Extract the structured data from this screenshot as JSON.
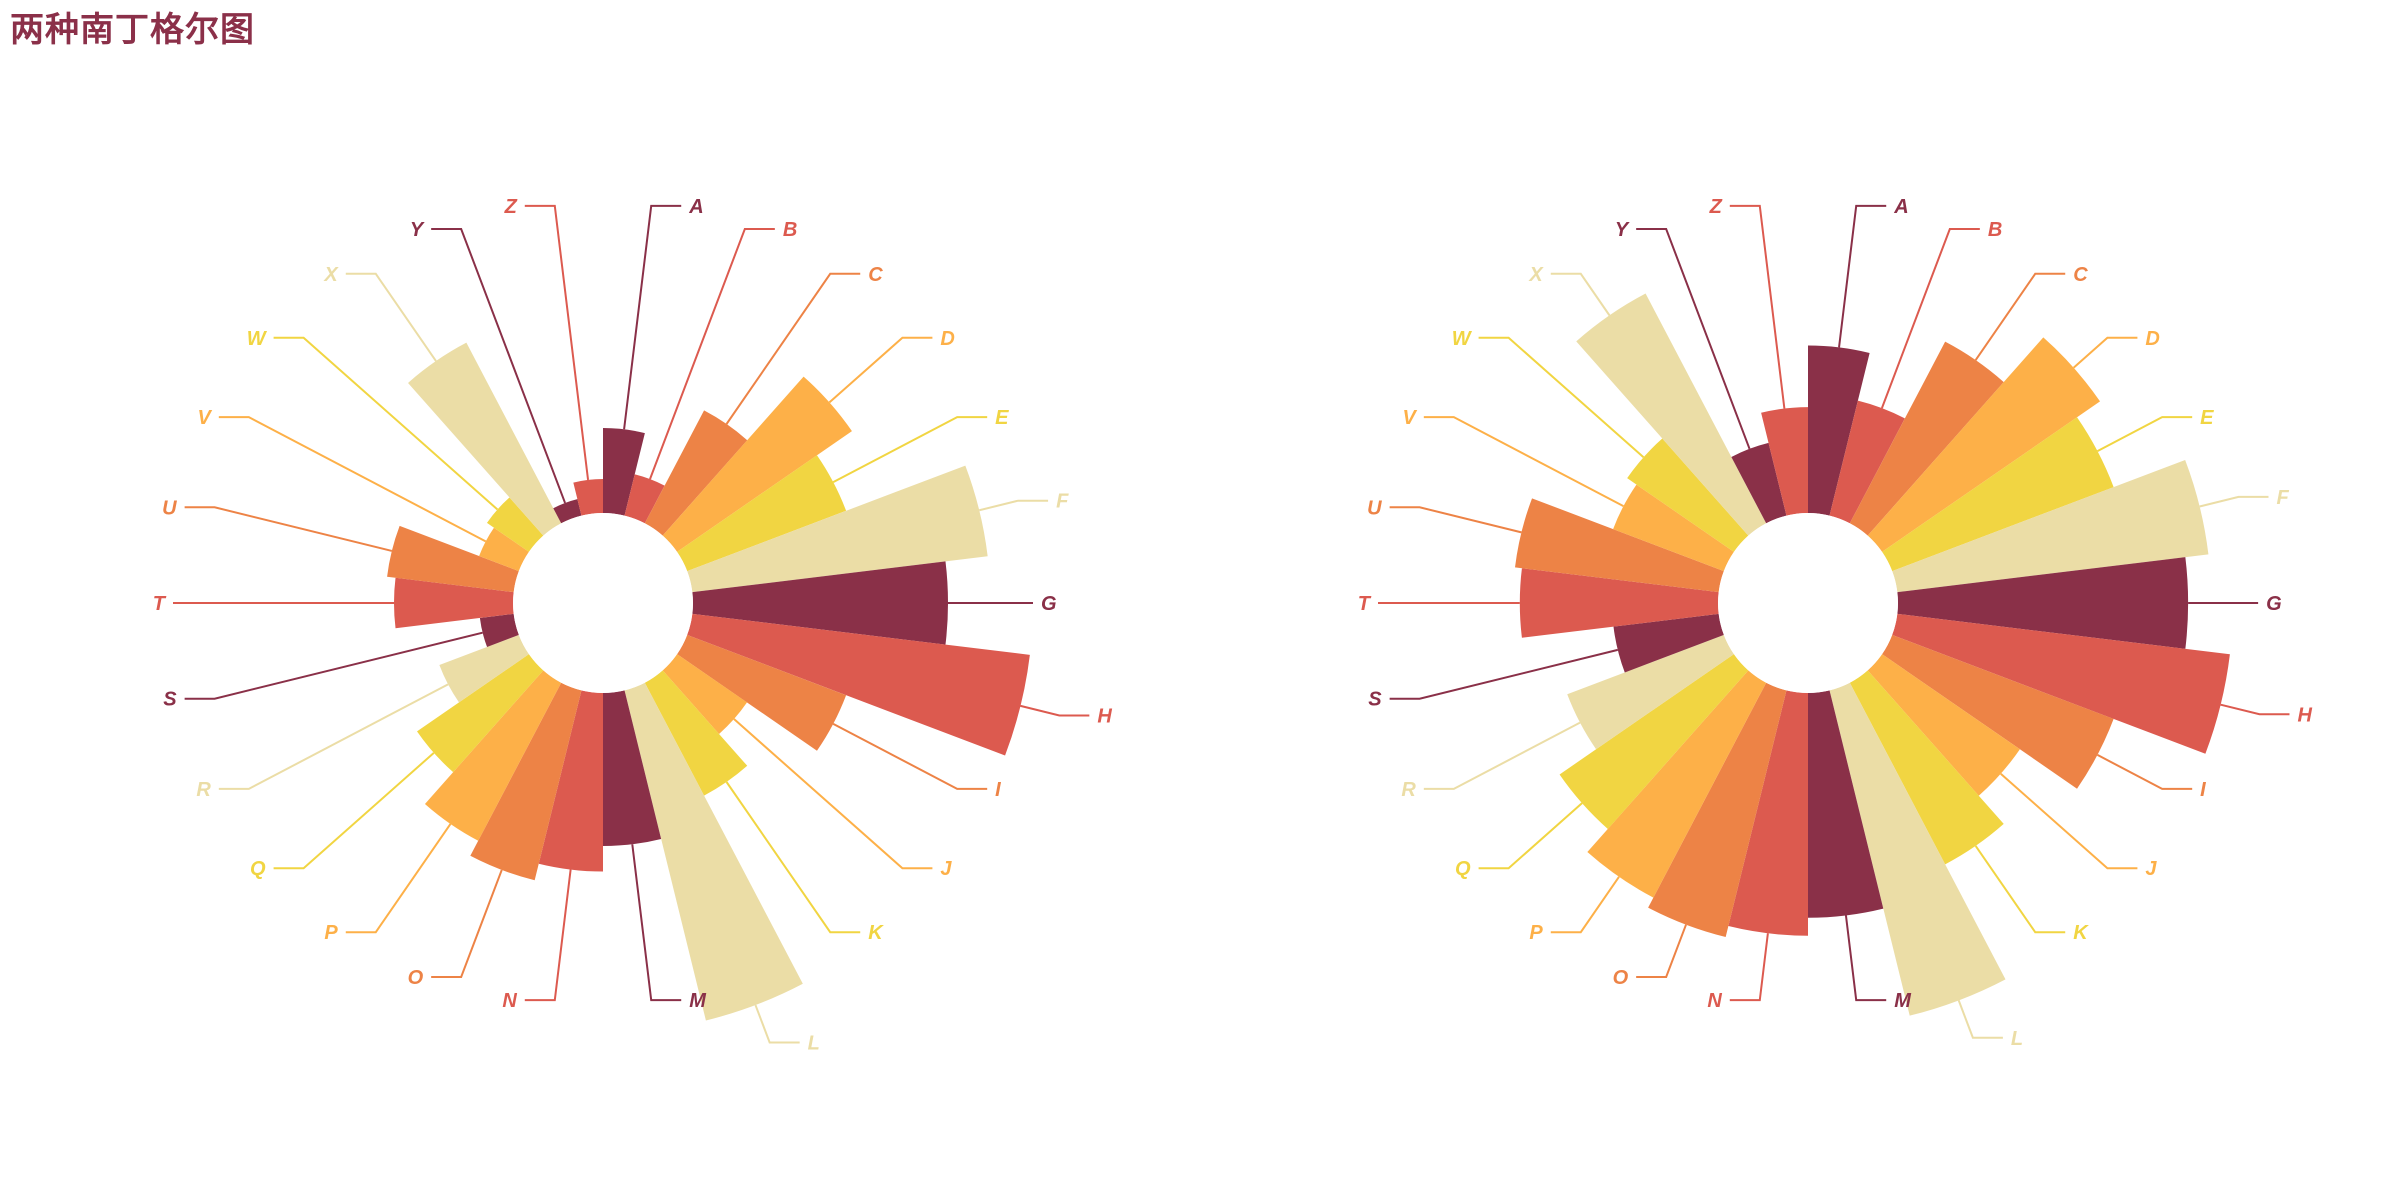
{
  "title": "两种南丁格尔图",
  "colors": [
    "#8a3048",
    "#dc5a4f",
    "#ed8346",
    "#fdb048",
    "#f1d542",
    "#ebdda6"
  ],
  "chart_data": [
    {
      "type": "rose-radius",
      "categories": [
        "A",
        "B",
        "C",
        "D",
        "E",
        "F",
        "G",
        "H",
        "I",
        "J",
        "K",
        "L",
        "M",
        "N",
        "O",
        "P",
        "Q",
        "R",
        "S",
        "T",
        "U",
        "V",
        "W",
        "X",
        "Y",
        "Z"
      ],
      "values": [
        10,
        5,
        15,
        25,
        20,
        35,
        30,
        40,
        20,
        10,
        15,
        40,
        18,
        21,
        23,
        21,
        16,
        10,
        4,
        14,
        15,
        5,
        6,
        24,
        2,
        4
      ],
      "rlim": [
        0,
        45
      ]
    },
    {
      "type": "rose-area",
      "categories": [
        "A",
        "B",
        "C",
        "D",
        "E",
        "F",
        "G",
        "H",
        "I",
        "J",
        "K",
        "L",
        "M",
        "N",
        "O",
        "P",
        "Q",
        "R",
        "S",
        "T",
        "U",
        "V",
        "W",
        "X",
        "Y",
        "Z"
      ],
      "values": [
        10,
        5,
        15,
        25,
        20,
        35,
        30,
        40,
        20,
        10,
        15,
        40,
        18,
        21,
        23,
        21,
        16,
        10,
        4,
        14,
        15,
        5,
        6,
        24,
        2,
        4
      ],
      "rlim": [
        0,
        45
      ]
    }
  ]
}
